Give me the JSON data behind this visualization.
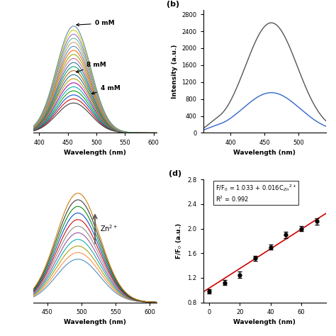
{
  "panel_a": {
    "xlabel": "Wavelength (nm)",
    "xlim": [
      390,
      605
    ],
    "peak_wl": 460,
    "sigma": 30,
    "n_curves": 20,
    "colors": [
      "#333333",
      "#cc0000",
      "#1144cc",
      "#009900",
      "#00aaaa",
      "#aa00aa",
      "#bb9900",
      "#226688",
      "#aa6600",
      "#009966",
      "#336699",
      "#cc6699",
      "#88aa00",
      "#ff6600",
      "#5588bb",
      "#cc9966",
      "#55bb99",
      "#9966cc",
      "#cccc00",
      "#558899"
    ]
  },
  "panel_b": {
    "label": "(b)",
    "xlabel": "Wavelength (nm)",
    "ylabel": "Intensity (a.u.)",
    "xlim": [
      360,
      540
    ],
    "ylim": [
      0,
      2900
    ],
    "yticks": [
      0,
      400,
      800,
      1200,
      1600,
      2000,
      2400,
      2800
    ],
    "curve1_color": "#555555",
    "curve2_color": "#3366cc",
    "curve1_peak": 460,
    "curve1_amp": 2600,
    "curve1_sigma": 38,
    "curve2_peak": 460,
    "curve2_amp": 950,
    "curve2_sigma": 42,
    "exc_peak": 375,
    "exc_sigma": 10,
    "exc_amp1": 80,
    "exc_amp2": 35
  },
  "panel_c": {
    "xlabel": "Wavelength (nm)",
    "xlim": [
      430,
      610
    ],
    "peak_wl": 495,
    "sigma": 32,
    "n_curves": 11,
    "arrow_text": "Zn$^{2+}$",
    "colors": [
      "#4488bb",
      "#ff8844",
      "#aa9900",
      "#00aaaa",
      "#994499",
      "#888888",
      "#cc0000",
      "#0044cc",
      "#008800",
      "#333333",
      "#cc7700"
    ]
  },
  "panel_d": {
    "label": "(d)",
    "xlabel": "Wavelength (nm)",
    "ylabel": "F/F$_0$ (a.u.)",
    "xlim": [
      -4,
      76
    ],
    "ylim": [
      0.8,
      2.8
    ],
    "yticks": [
      0.8,
      1.2,
      1.6,
      2.0,
      2.4,
      2.8
    ],
    "xticks": [
      0,
      20,
      40,
      60
    ],
    "x_data": [
      0,
      10,
      20,
      30,
      40,
      50,
      60,
      70
    ],
    "y_data": [
      0.98,
      1.12,
      1.25,
      1.52,
      1.7,
      1.9,
      2.0,
      2.12
    ],
    "yerr": [
      0.04,
      0.04,
      0.05,
      0.04,
      0.04,
      0.05,
      0.04,
      0.05
    ],
    "fit_color": "#cc0000",
    "data_color": "#000000",
    "slope": 0.016,
    "intercept": 1.033
  }
}
